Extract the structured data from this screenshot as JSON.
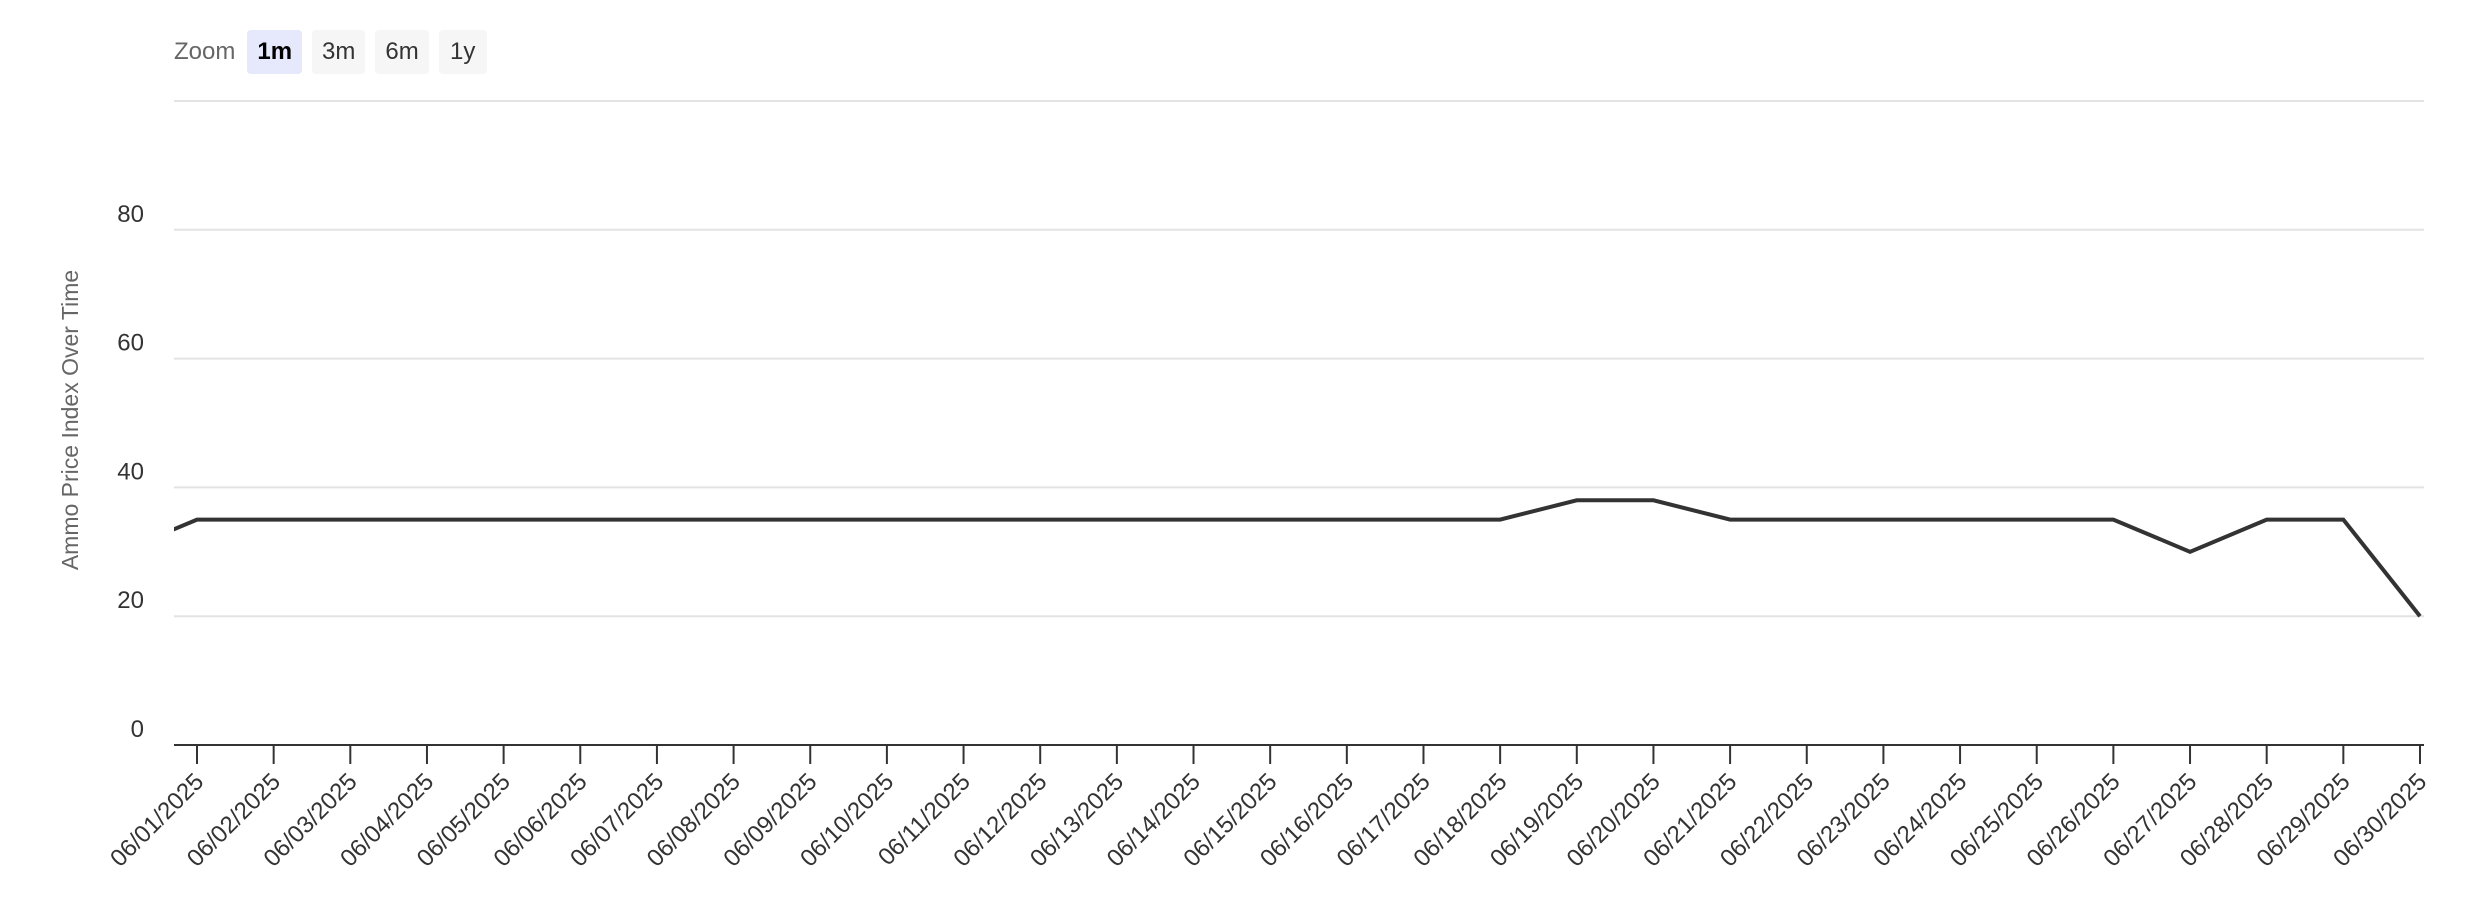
{
  "zoom": {
    "label": "Zoom",
    "buttons": [
      {
        "label": "1m",
        "active": true
      },
      {
        "label": "3m",
        "active": false
      },
      {
        "label": "6m",
        "active": false
      },
      {
        "label": "1y",
        "active": false
      }
    ]
  },
  "chart_data": {
    "type": "line",
    "title": "",
    "xlabel": "",
    "ylabel": "Ammo Price Index Over Time",
    "ylim": [
      0,
      100
    ],
    "yticks": [
      0,
      20,
      40,
      60,
      80
    ],
    "grid": true,
    "line_color": "#333333",
    "x": [
      "06/01/2025",
      "06/02/2025",
      "06/03/2025",
      "06/04/2025",
      "06/05/2025",
      "06/06/2025",
      "06/07/2025",
      "06/08/2025",
      "06/09/2025",
      "06/10/2025",
      "06/11/2025",
      "06/12/2025",
      "06/13/2025",
      "06/14/2025",
      "06/15/2025",
      "06/16/2025",
      "06/17/2025",
      "06/18/2025",
      "06/19/2025",
      "06/20/2025",
      "06/21/2025",
      "06/22/2025",
      "06/23/2025",
      "06/24/2025",
      "06/25/2025",
      "06/26/2025",
      "06/27/2025",
      "06/28/2025",
      "06/29/2025",
      "06/30/2025"
    ],
    "series": [
      {
        "values": [
          35,
          35,
          35,
          35,
          35,
          35,
          35,
          35,
          35,
          35,
          35,
          35,
          35,
          35,
          35,
          35,
          35,
          35,
          38,
          38,
          35,
          35,
          35,
          35,
          35,
          35,
          30,
          35,
          35,
          20
        ]
      }
    ],
    "prior_value_clipped": 30
  }
}
